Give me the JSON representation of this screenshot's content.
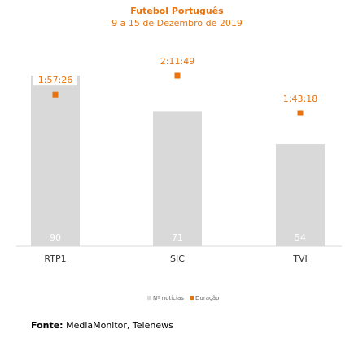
{
  "chart_data": {
    "type": "bar",
    "title": "Futebol Português",
    "subtitle": "9 a 15 de Dezembro de 2019",
    "categories": [
      "RTP1",
      "SIC",
      "TVI"
    ],
    "series": [
      {
        "name": "Nº notícias",
        "type": "bar",
        "values": [
          90,
          71,
          54
        ],
        "color": "#d9d9d9"
      },
      {
        "name": "Duração",
        "type": "marker",
        "values": [
          "1:57:26",
          "2:11:49",
          "1:43:18"
        ],
        "color": "#e8720c"
      }
    ],
    "legend": "bottom",
    "grid": false
  },
  "source": {
    "label": "Fonte:",
    "text": " MediaMonitor, Telenews"
  }
}
